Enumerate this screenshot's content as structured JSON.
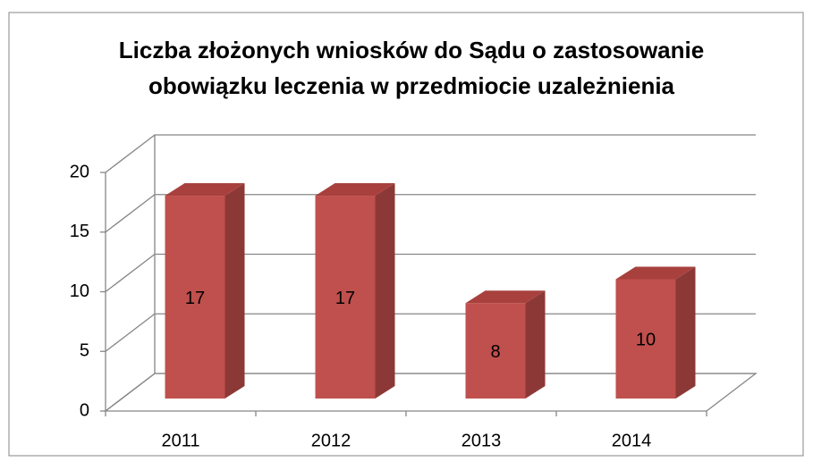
{
  "chart_data": {
    "type": "bar3d",
    "title": [
      "Liczba złożonych wniosków do Sądu o zastosowanie",
      "obowiązku leczenia w przedmiocie uzależnienia"
    ],
    "categories": [
      "2011",
      "2012",
      "2013",
      "2014"
    ],
    "values": [
      17,
      17,
      8,
      10
    ],
    "color": "#c0504d",
    "ylim": [
      0,
      20
    ],
    "yticks": [
      0,
      5,
      10,
      15,
      20
    ],
    "grid": true
  }
}
